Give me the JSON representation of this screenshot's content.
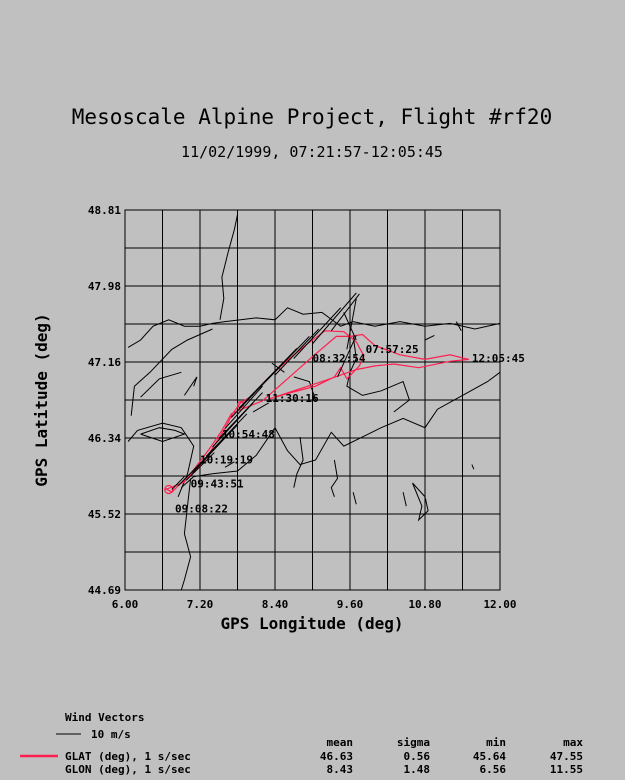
{
  "chart_data": {
    "type": "line",
    "title": "Mesoscale Alpine Project, Flight #rf20",
    "subtitle": "11/02/1999, 07:21:57-12:05:45",
    "xlabel": "GPS Longitude (deg)",
    "ylabel": "GPS Latitude (deg)",
    "xlim": [
      6.0,
      12.0
    ],
    "ylim": [
      44.69,
      48.81
    ],
    "x_ticks": [
      "6.00",
      "7.20",
      "8.40",
      "9.60",
      "10.80",
      "12.00"
    ],
    "y_ticks": [
      "44.69",
      "45.52",
      "46.34",
      "47.16",
      "47.98",
      "48.81"
    ],
    "grid": true,
    "colors": {
      "track": "#ff1f4f",
      "map": "#000000",
      "background": "#c0c0c0"
    },
    "series": [
      {
        "name": "GLAT (deg), 1 s/sec",
        "points": [
          [
            6.65,
            45.79
          ],
          [
            6.75,
            45.75
          ],
          [
            6.85,
            45.82
          ],
          [
            7.0,
            45.9
          ],
          [
            7.15,
            46.0
          ],
          [
            7.3,
            46.12
          ],
          [
            7.45,
            46.28
          ],
          [
            7.6,
            46.44
          ],
          [
            7.72,
            46.6
          ],
          [
            7.85,
            46.72
          ],
          [
            8.0,
            46.78
          ],
          [
            8.25,
            46.96
          ],
          [
            8.6,
            47.18
          ],
          [
            8.9,
            47.35
          ],
          [
            9.2,
            47.5
          ],
          [
            9.5,
            47.49
          ],
          [
            9.7,
            47.38
          ],
          [
            9.82,
            47.23
          ],
          [
            9.75,
            47.12
          ],
          [
            9.55,
            46.98
          ],
          [
            9.45,
            47.1
          ],
          [
            9.35,
            47.0
          ],
          [
            9.05,
            46.9
          ],
          [
            8.6,
            46.82
          ],
          [
            8.3,
            46.76
          ],
          [
            8.7,
            46.85
          ],
          [
            9.2,
            46.96
          ],
          [
            9.7,
            47.08
          ],
          [
            10.0,
            47.12
          ],
          [
            10.3,
            47.14
          ],
          [
            10.7,
            47.1
          ],
          [
            11.2,
            47.17
          ],
          [
            11.5,
            47.19
          ],
          [
            11.2,
            47.24
          ],
          [
            10.8,
            47.19
          ],
          [
            10.4,
            47.24
          ],
          [
            10.0,
            47.34
          ],
          [
            9.8,
            47.46
          ],
          [
            9.6,
            47.44
          ],
          [
            9.38,
            47.44
          ],
          [
            9.0,
            47.22
          ],
          [
            8.6,
            46.98
          ],
          [
            8.2,
            46.74
          ],
          [
            7.9,
            46.66
          ],
          [
            7.7,
            46.6
          ],
          [
            7.55,
            46.42
          ],
          [
            7.35,
            46.22
          ],
          [
            7.15,
            46.04
          ],
          [
            6.95,
            45.86
          ],
          [
            6.65,
            45.78
          ]
        ]
      }
    ],
    "wind_vectors": [
      [
        6.75,
        45.78,
        0.2,
        0.14
      ],
      [
        6.85,
        45.82,
        0.35,
        0.24
      ],
      [
        6.98,
        45.88,
        0.45,
        0.3
      ],
      [
        7.08,
        45.96,
        0.55,
        0.4
      ],
      [
        7.2,
        46.06,
        0.6,
        0.42
      ],
      [
        7.3,
        46.14,
        0.65,
        0.46
      ],
      [
        7.4,
        46.24,
        0.65,
        0.48
      ],
      [
        7.5,
        46.33,
        0.7,
        0.5
      ],
      [
        7.6,
        46.44,
        0.6,
        0.46
      ],
      [
        7.7,
        46.56,
        0.7,
        0.5
      ],
      [
        7.82,
        46.66,
        0.75,
        0.52
      ],
      [
        7.95,
        46.75,
        0.8,
        0.56
      ],
      [
        8.15,
        46.88,
        0.8,
        0.56
      ],
      [
        8.4,
        47.02,
        0.7,
        0.5
      ],
      [
        8.7,
        47.2,
        0.75,
        0.55
      ],
      [
        9.0,
        47.36,
        0.7,
        0.55
      ],
      [
        9.3,
        47.5,
        0.45,
        0.4
      ],
      [
        9.4,
        47.0,
        0.3,
        0.45
      ],
      [
        9.55,
        47.3,
        0.15,
        0.55
      ],
      [
        9.7,
        47.4,
        -0.2,
        0.3
      ]
    ],
    "time_labels": [
      {
        "text": "07:57:25",
        "lon": 9.85,
        "lat": 47.26
      },
      {
        "text": "08:32:54",
        "lon": 9.0,
        "lat": 47.16
      },
      {
        "text": "12:05:45",
        "lon": 11.55,
        "lat": 47.16
      },
      {
        "text": "11:30:16",
        "lon": 8.25,
        "lat": 46.73
      },
      {
        "text": "10:54:48",
        "lon": 7.55,
        "lat": 46.34
      },
      {
        "text": "10:19:19",
        "lon": 7.2,
        "lat": 46.06
      },
      {
        "text": "09:43:51",
        "lon": 7.05,
        "lat": 45.8
      },
      {
        "text": "09:08:22",
        "lon": 6.8,
        "lat": 45.53
      }
    ],
    "map_outlines": [
      [
        [
          7.8,
          48.76
        ],
        [
          7.75,
          48.6
        ],
        [
          7.65,
          48.35
        ],
        [
          7.55,
          48.08
        ],
        [
          7.58,
          47.85
        ],
        [
          7.52,
          47.62
        ]
      ],
      [
        [
          6.05,
          47.32
        ],
        [
          6.25,
          47.4
        ],
        [
          6.45,
          47.55
        ],
        [
          6.7,
          47.62
        ],
        [
          6.95,
          47.55
        ],
        [
          7.2,
          47.55
        ],
        [
          7.4,
          47.58
        ],
        [
          7.6,
          47.6
        ],
        [
          7.85,
          47.62
        ],
        [
          8.1,
          47.64
        ],
        [
          8.4,
          47.62
        ],
        [
          8.6,
          47.75
        ],
        [
          8.85,
          47.68
        ],
        [
          9.15,
          47.7
        ],
        [
          9.45,
          47.55
        ],
        [
          9.65,
          47.6
        ],
        [
          10.0,
          47.55
        ],
        [
          10.4,
          47.6
        ],
        [
          10.8,
          47.55
        ],
        [
          11.2,
          47.58
        ],
        [
          11.6,
          47.52
        ],
        [
          12.0,
          47.58
        ]
      ],
      [
        [
          6.1,
          46.58
        ],
        [
          6.15,
          46.9
        ],
        [
          6.4,
          47.05
        ],
        [
          6.75,
          47.3
        ],
        [
          7.0,
          47.4
        ],
        [
          7.4,
          47.52
        ]
      ],
      [
        [
          6.05,
          46.3
        ],
        [
          6.2,
          46.42
        ],
        [
          6.6,
          46.5
        ],
        [
          6.9,
          46.45
        ],
        [
          7.1,
          46.25
        ],
        [
          7.0,
          45.95
        ],
        [
          6.85,
          45.7
        ]
      ],
      [
        [
          6.25,
          46.38
        ],
        [
          6.55,
          46.45
        ],
        [
          6.8,
          46.42
        ],
        [
          6.95,
          46.38
        ],
        [
          6.6,
          46.3
        ],
        [
          6.25,
          46.38
        ]
      ],
      [
        [
          6.9,
          45.8
        ],
        [
          7.1,
          45.92
        ],
        [
          7.4,
          45.95
        ],
        [
          7.8,
          45.98
        ],
        [
          8.1,
          46.15
        ],
        [
          8.4,
          46.45
        ],
        [
          8.6,
          46.2
        ],
        [
          8.8,
          46.05
        ],
        [
          9.05,
          46.1
        ],
        [
          9.3,
          46.4
        ],
        [
          9.5,
          46.25
        ],
        [
          9.8,
          46.35
        ],
        [
          10.1,
          46.45
        ],
        [
          10.45,
          46.55
        ],
        [
          10.8,
          46.45
        ],
        [
          11.0,
          46.65
        ],
        [
          11.4,
          46.8
        ],
        [
          11.8,
          46.95
        ],
        [
          12.0,
          47.05
        ]
      ],
      [
        [
          9.65,
          47.45
        ],
        [
          9.7,
          47.2
        ],
        [
          9.6,
          47.05
        ],
        [
          9.55,
          46.9
        ],
        [
          9.8,
          46.8
        ],
        [
          10.1,
          46.85
        ],
        [
          10.45,
          46.95
        ],
        [
          10.55,
          46.75
        ],
        [
          10.3,
          46.62
        ]
      ],
      [
        [
          7.05,
          45.9
        ],
        [
          7.0,
          45.6
        ],
        [
          6.95,
          45.3
        ],
        [
          7.05,
          45.05
        ],
        [
          6.95,
          44.8
        ],
        [
          6.9,
          44.69
        ]
      ],
      [
        [
          8.8,
          46.35
        ],
        [
          8.85,
          46.1
        ],
        [
          8.75,
          45.95
        ],
        [
          8.7,
          45.8
        ]
      ],
      [
        [
          9.35,
          46.1
        ],
        [
          9.4,
          45.9
        ],
        [
          9.3,
          45.8
        ],
        [
          9.35,
          45.7
        ]
      ],
      [
        [
          9.65,
          45.75
        ],
        [
          9.7,
          45.62
        ]
      ],
      [
        [
          10.6,
          45.85
        ],
        [
          10.8,
          45.7
        ],
        [
          10.85,
          45.55
        ],
        [
          10.7,
          45.45
        ],
        [
          10.75,
          45.6
        ],
        [
          10.6,
          45.85
        ]
      ],
      [
        [
          10.45,
          45.75
        ],
        [
          10.5,
          45.6
        ]
      ],
      [
        [
          11.55,
          46.05
        ],
        [
          11.58,
          46.0
        ]
      ],
      [
        [
          8.7,
          47.0
        ],
        [
          8.95,
          46.95
        ],
        [
          9.05,
          46.75
        ]
      ],
      [
        [
          8.35,
          47.15
        ],
        [
          8.55,
          47.05
        ]
      ],
      [
        [
          6.95,
          46.8
        ],
        [
          7.15,
          47.0
        ],
        [
          7.1,
          46.9
        ]
      ],
      [
        [
          6.25,
          46.78
        ],
        [
          6.55,
          46.98
        ],
        [
          6.9,
          47.05
        ]
      ],
      [
        [
          8.05,
          46.62
        ],
        [
          8.3,
          46.72
        ]
      ],
      [
        [
          10.8,
          47.4
        ],
        [
          10.95,
          47.45
        ]
      ],
      [
        [
          11.3,
          47.6
        ],
        [
          11.38,
          47.5
        ]
      ],
      [
        [
          7.6,
          46.02
        ],
        [
          7.75,
          46.08
        ]
      ]
    ]
  },
  "legend": {
    "wind_title": "Wind Vectors",
    "wind_scale_label": "10 m/s",
    "stats_headers": [
      "mean",
      "sigma",
      "min",
      "max"
    ],
    "rows": [
      {
        "label": "GLAT (deg), 1 s/sec",
        "mean": "46.63",
        "sigma": "0.56",
        "min": "45.64",
        "max": "47.55"
      },
      {
        "label": "GLON (deg), 1 s/sec",
        "mean": "8.43",
        "sigma": "1.48",
        "min": "6.56",
        "max": "11.55"
      }
    ]
  }
}
